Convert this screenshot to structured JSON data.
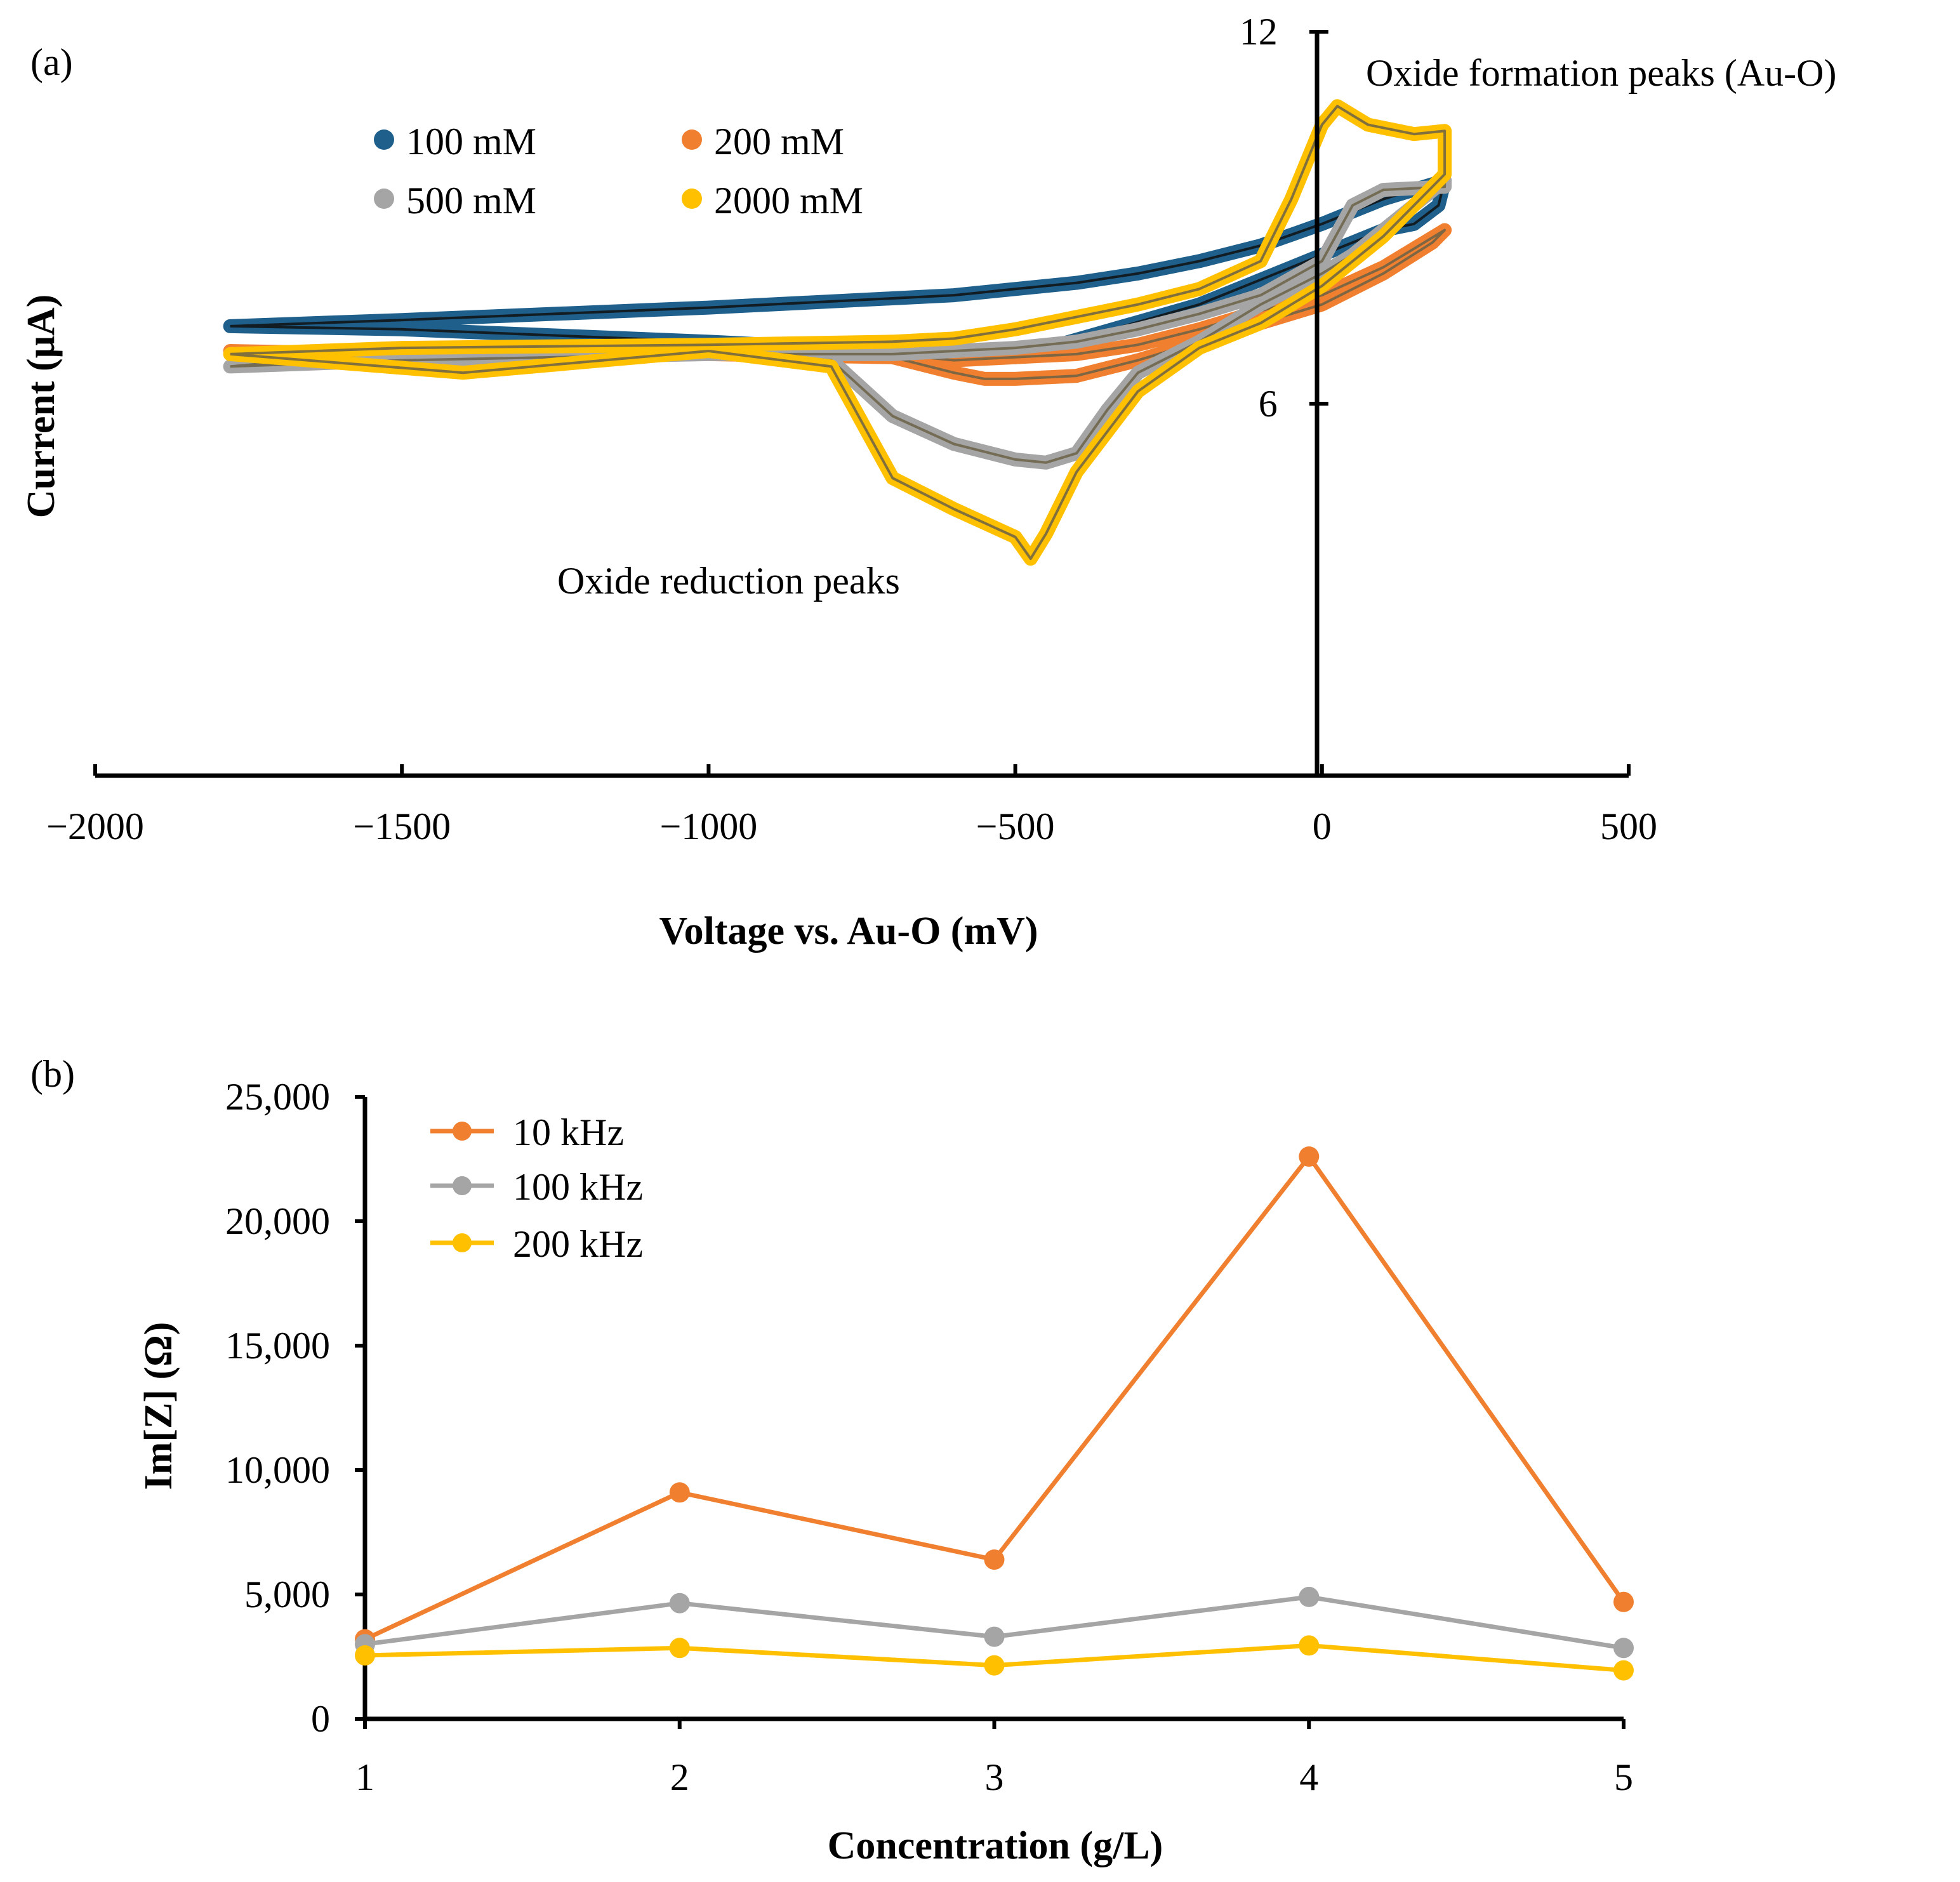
{
  "chart_data": [
    {
      "panel": "(a)",
      "type": "line",
      "xlabel": "Voltage vs. Au-O (mV)",
      "ylabel": "Current (μA)",
      "xlim": [
        -2000,
        500
      ],
      "xticks": [
        -2000,
        -1500,
        -1000,
        -500,
        0,
        500
      ],
      "xtick_labels": [
        "−2000",
        "−1500",
        "−1000",
        "−500",
        "0",
        "500"
      ],
      "ylim": [
        0,
        12
      ],
      "yticks": [
        6,
        12
      ],
      "ytick_labels": [
        "6",
        "12"
      ],
      "annotations": [
        "Oxide formation peaks (Au-O)",
        "Oxide reduction peaks"
      ],
      "legend": [
        "100 mM",
        "200 mM",
        "500 mM",
        "2000 mM"
      ],
      "series": [
        {
          "name": "100 mM",
          "color": "#1f5f8b",
          "x": [
            -1780,
            -1500,
            -1000,
            -700,
            -600,
            -550,
            -500,
            -400,
            -300,
            -200,
            -100,
            0,
            100,
            200,
            190,
            150,
            100,
            0,
            -100,
            -200,
            -500,
            -1000,
            -1500,
            -1780
          ],
          "y": [
            7.25,
            7.35,
            7.55,
            7.7,
            7.75,
            7.8,
            7.85,
            7.95,
            8.1,
            8.3,
            8.55,
            8.9,
            9.3,
            9.6,
            9.2,
            8.9,
            8.8,
            8.4,
            8.0,
            7.6,
            6.75,
            7.0,
            7.2,
            7.25
          ]
        },
        {
          "name": "200 mM",
          "color": "#f08030",
          "x": [
            -1780,
            -1500,
            -1000,
            -700,
            -650,
            -600,
            -500,
            -400,
            -300,
            -200,
            -100,
            0,
            100,
            200,
            180,
            100,
            0,
            -100,
            -200,
            -300,
            -400,
            -500,
            -550,
            -600,
            -700,
            -1000,
            -1500,
            -1780
          ],
          "y": [
            6.85,
            6.8,
            6.8,
            6.78,
            6.75,
            6.7,
            6.75,
            6.8,
            6.95,
            7.2,
            7.5,
            7.75,
            8.2,
            8.8,
            8.6,
            8.1,
            7.6,
            7.3,
            7.0,
            6.7,
            6.45,
            6.4,
            6.4,
            6.5,
            6.75,
            6.8,
            6.8,
            6.85
          ]
        },
        {
          "name": "500 mM",
          "color": "#a5a5a5",
          "x": [
            -1780,
            -1500,
            -1000,
            -700,
            -600,
            -500,
            -400,
            -300,
            -200,
            -100,
            0,
            50,
            100,
            200,
            200,
            150,
            100,
            50,
            0,
            -100,
            -200,
            -300,
            -350,
            -400,
            -450,
            -500,
            -600,
            -700,
            -800,
            -1000,
            -1500,
            -1780
          ],
          "y": [
            6.6,
            6.7,
            6.8,
            6.8,
            6.85,
            6.9,
            7.0,
            7.2,
            7.45,
            7.75,
            8.3,
            9.2,
            9.45,
            9.5,
            9.6,
            9.2,
            8.8,
            8.4,
            8.1,
            7.6,
            7.0,
            6.5,
            5.9,
            5.2,
            5.05,
            5.1,
            5.35,
            5.8,
            6.7,
            6.85,
            6.85,
            6.6
          ]
        },
        {
          "name": "2000 mM",
          "color": "#ffc000",
          "x": [
            -1780,
            -1500,
            -1000,
            -700,
            -600,
            -500,
            -400,
            -300,
            -200,
            -100,
            -50,
            0,
            25,
            75,
            150,
            200,
            200,
            150,
            100,
            50,
            0,
            -100,
            -200,
            -300,
            -400,
            -450,
            -475,
            -500,
            -600,
            -700,
            -800,
            -1000,
            -1400,
            -1780
          ],
          "y": [
            6.8,
            6.9,
            6.95,
            7.0,
            7.05,
            7.2,
            7.4,
            7.6,
            7.85,
            8.3,
            9.3,
            10.5,
            10.8,
            10.5,
            10.35,
            10.4,
            9.7,
            9.2,
            8.7,
            8.3,
            7.9,
            7.3,
            6.9,
            6.2,
            4.9,
            3.9,
            3.5,
            3.85,
            4.3,
            4.8,
            6.6,
            6.85,
            6.5,
            6.8
          ]
        }
      ]
    },
    {
      "panel": "(b)",
      "type": "line",
      "xlabel": "Concentration (g/L)",
      "ylabel": "Im[Z] (Ω)",
      "x": [
        1,
        2,
        3,
        4,
        5
      ],
      "xlim": [
        1,
        5
      ],
      "xtick_labels": [
        "1",
        "2",
        "3",
        "4",
        "5"
      ],
      "ylim": [
        0,
        25000
      ],
      "yticks": [
        0,
        5000,
        10000,
        15000,
        20000,
        25000
      ],
      "ytick_labels": [
        "0",
        "5,000",
        "10,000",
        "15,000",
        "20,000",
        "25,000"
      ],
      "legend": [
        "10 kHz",
        "100 kHz",
        "200 kHz"
      ],
      "series": [
        {
          "name": "10 kHz",
          "color": "#f08030",
          "values": [
            3200,
            9100,
            6400,
            22600,
            4700
          ]
        },
        {
          "name": "100 kHz",
          "color": "#a5a5a5",
          "values": [
            3000,
            4650,
            3300,
            4900,
            2850
          ]
        },
        {
          "name": "200 kHz",
          "color": "#ffc000",
          "values": [
            2550,
            2850,
            2150,
            2950,
            1950
          ]
        }
      ]
    }
  ]
}
